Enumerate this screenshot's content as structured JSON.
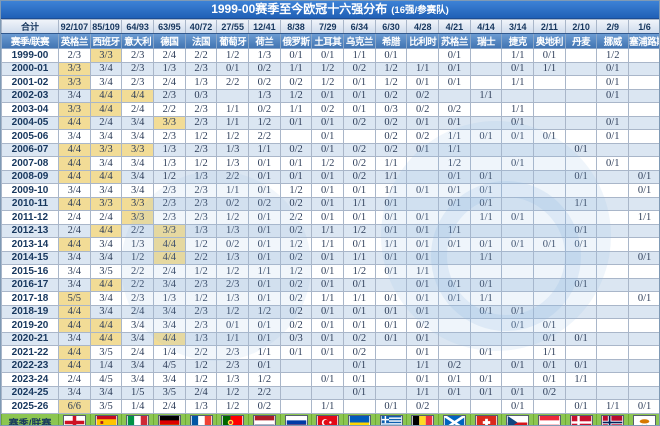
{
  "title": {
    "main": "1999-00赛季至今欧冠十六强分布",
    "sub": "(16强/参赛队)"
  },
  "colors": {
    "title_bar": "#2b6fc6",
    "country_header_row": "#4f81bd",
    "totals_row_bg": "#dce6f1",
    "row_alt_bg": "#dbe6f2",
    "highlight_cell": "#f2dc96",
    "footer_green": "#8cc651",
    "grid_line": "#a9b6c9",
    "dark_text": "#17375e"
  },
  "chart_data": {
    "type": "table",
    "title": "1999-00赛季至今欧冠十六强分布 (16强/参赛队)",
    "totals_label": "合计",
    "season_league_label": "赛季/联赛",
    "columns": [
      {
        "name": "英格兰",
        "total": "92/107",
        "flag": "england"
      },
      {
        "name": "西班牙",
        "total": "85/109",
        "flag": "spain"
      },
      {
        "name": "意大利",
        "total": "64/93",
        "flag": "italy"
      },
      {
        "name": "德国",
        "total": "63/95",
        "flag": "germany"
      },
      {
        "name": "法国",
        "total": "40/72",
        "flag": "france"
      },
      {
        "name": "葡萄牙",
        "total": "27/55",
        "flag": "portugal"
      },
      {
        "name": "荷兰",
        "total": "12/41",
        "flag": "netherlands"
      },
      {
        "name": "俄罗斯",
        "total": "8/38",
        "flag": "russia"
      },
      {
        "name": "土耳其",
        "total": "7/29",
        "flag": "turkey"
      },
      {
        "name": "乌克兰",
        "total": "6/34",
        "flag": "ukraine"
      },
      {
        "name": "希腊",
        "total": "6/30",
        "flag": "greece"
      },
      {
        "name": "比利时",
        "total": "4/28",
        "flag": "belgium"
      },
      {
        "name": "苏格兰",
        "total": "4/21",
        "flag": "scotland"
      },
      {
        "name": "瑞士",
        "total": "4/14",
        "flag": "switzerland"
      },
      {
        "name": "捷克",
        "total": "3/14",
        "flag": "czech"
      },
      {
        "name": "奥地利",
        "total": "2/11",
        "flag": "austria"
      },
      {
        "name": "丹麦",
        "total": "2/10",
        "flag": "denmark"
      },
      {
        "name": "挪威",
        "total": "2/9",
        "flag": "norway"
      },
      {
        "name": "塞浦路斯",
        "total": "1/6",
        "flag": "cyprus"
      }
    ],
    "rows": [
      {
        "season": "1999-00",
        "values": [
          "2/3",
          "3/3",
          "2/3",
          "2/4",
          "2/2",
          "1/2",
          "1/3",
          "0/1",
          "0/1",
          "1/1",
          "0/1",
          "",
          "0/1",
          "",
          "1/1",
          "0/1",
          "",
          "1/2",
          ""
        ],
        "highlight": [
          1
        ]
      },
      {
        "season": "2000-01",
        "values": [
          "3/3",
          "3/4",
          "2/3",
          "1/3",
          "2/3",
          "0/1",
          "0/2",
          "1/1",
          "1/2",
          "0/2",
          "1/2",
          "1/1",
          "0/1",
          "",
          "0/1",
          "1/1",
          "",
          "0/1",
          ""
        ],
        "highlight": [
          0
        ]
      },
      {
        "season": "2001-02",
        "values": [
          "3/3",
          "3/4",
          "2/3",
          "2/4",
          "1/3",
          "2/2",
          "0/2",
          "0/2",
          "1/2",
          "0/1",
          "1/2",
          "0/1",
          "0/1",
          "",
          "1/1",
          "",
          "",
          "0/1",
          ""
        ],
        "highlight": [
          0
        ]
      },
      {
        "season": "2002-03",
        "values": [
          "3/4",
          "4/4",
          "4/4",
          "2/3",
          "0/3",
          "",
          "1/3",
          "1/2",
          "0/1",
          "0/1",
          "0/2",
          "0/2",
          "",
          "1/1",
          "",
          "",
          "",
          "0/1",
          ""
        ],
        "highlight": [
          1,
          2
        ]
      },
      {
        "season": "2003-04",
        "values": [
          "3/3",
          "4/4",
          "2/4",
          "2/2",
          "2/3",
          "1/1",
          "0/2",
          "1/1",
          "0/2",
          "0/1",
          "0/3",
          "0/2",
          "0/2",
          "",
          "1/1",
          "",
          "",
          "",
          ""
        ],
        "highlight": [
          0,
          1
        ]
      },
      {
        "season": "2004-05",
        "values": [
          "4/4",
          "2/4",
          "3/4",
          "3/3",
          "2/3",
          "1/1",
          "1/2",
          "0/1",
          "0/1",
          "0/2",
          "0/2",
          "0/1",
          "0/1",
          "",
          "0/1",
          "",
          "",
          "0/1",
          ""
        ],
        "highlight": [
          0,
          3
        ]
      },
      {
        "season": "2005-06",
        "values": [
          "3/4",
          "3/4",
          "3/4",
          "2/3",
          "1/2",
          "1/2",
          "2/2",
          "",
          "0/1",
          "",
          "0/2",
          "0/2",
          "1/1",
          "0/1",
          "0/1",
          "0/1",
          "",
          "0/1",
          ""
        ],
        "highlight": []
      },
      {
        "season": "2006-07",
        "values": [
          "4/4",
          "3/3",
          "3/3",
          "1/3",
          "2/3",
          "1/3",
          "1/1",
          "0/2",
          "0/1",
          "0/2",
          "0/2",
          "0/1",
          "1/1",
          "",
          "",
          "",
          "0/1",
          "",
          ""
        ],
        "highlight": [
          0,
          1,
          2
        ]
      },
      {
        "season": "2007-08",
        "values": [
          "4/4",
          "3/4",
          "3/4",
          "1/3",
          "1/2",
          "1/3",
          "0/1",
          "0/1",
          "1/2",
          "0/2",
          "1/1",
          "",
          "1/2",
          "",
          "0/1",
          "",
          "",
          "0/1",
          ""
        ],
        "highlight": [
          0
        ]
      },
      {
        "season": "2008-09",
        "values": [
          "4/4",
          "4/4",
          "3/4",
          "1/2",
          "1/3",
          "2/2",
          "0/1",
          "0/1",
          "0/1",
          "0/2",
          "1/1",
          "",
          "0/1",
          "0/1",
          "",
          "",
          "0/1",
          "",
          "0/1"
        ],
        "highlight": [
          0,
          1
        ]
      },
      {
        "season": "2009-10",
        "values": [
          "3/4",
          "3/4",
          "3/4",
          "2/3",
          "2/3",
          "1/1",
          "0/1",
          "1/2",
          "0/1",
          "0/1",
          "1/1",
          "0/1",
          "0/1",
          "0/1",
          "",
          "",
          "",
          "",
          "0/1"
        ],
        "highlight": []
      },
      {
        "season": "2010-11",
        "values": [
          "4/4",
          "3/3",
          "3/3",
          "2/3",
          "2/3",
          "0/2",
          "0/2",
          "0/2",
          "0/1",
          "1/1",
          "0/1",
          "",
          "0/1",
          "0/1",
          "",
          "",
          "1/1",
          "",
          ""
        ],
        "highlight": [
          0,
          1,
          2
        ]
      },
      {
        "season": "2011-12",
        "values": [
          "2/4",
          "2/4",
          "3/3",
          "2/3",
          "2/3",
          "1/2",
          "0/1",
          "2/2",
          "0/1",
          "0/1",
          "0/1",
          "0/1",
          "",
          "1/1",
          "0/1",
          "",
          "",
          "",
          "1/1"
        ],
        "highlight": [
          2
        ]
      },
      {
        "season": "2012-13",
        "values": [
          "2/4",
          "4/4",
          "2/2",
          "3/3",
          "1/3",
          "1/3",
          "0/1",
          "0/2",
          "1/1",
          "1/2",
          "0/1",
          "0/1",
          "1/1",
          "",
          "",
          "",
          "0/1",
          "",
          ""
        ],
        "highlight": [
          1,
          3
        ]
      },
      {
        "season": "2013-14",
        "values": [
          "4/4",
          "3/4",
          "1/3",
          "4/4",
          "1/2",
          "0/2",
          "0/1",
          "1/2",
          "1/1",
          "0/1",
          "1/1",
          "0/1",
          "0/1",
          "0/1",
          "0/1",
          "0/1",
          "0/1",
          "",
          ""
        ],
        "highlight": [
          0,
          3
        ]
      },
      {
        "season": "2014-15",
        "values": [
          "3/4",
          "3/4",
          "1/2",
          "4/4",
          "2/2",
          "1/3",
          "0/1",
          "0/2",
          "0/1",
          "1/1",
          "0/1",
          "0/1",
          "",
          "1/1",
          "",
          "",
          "",
          "",
          "0/1"
        ],
        "highlight": [
          3
        ]
      },
      {
        "season": "2015-16",
        "values": [
          "3/4",
          "3/5",
          "2/2",
          "2/4",
          "1/2",
          "1/2",
          "1/1",
          "1/2",
          "0/1",
          "1/2",
          "0/1",
          "1/1",
          "",
          "",
          "",
          "",
          "",
          "",
          ""
        ],
        "highlight": []
      },
      {
        "season": "2016-17",
        "values": [
          "3/4",
          "4/4",
          "2/2",
          "3/4",
          "2/3",
          "2/3",
          "0/1",
          "0/2",
          "0/1",
          "0/1",
          "",
          "0/1",
          "0/1",
          "0/1",
          "",
          "",
          "0/1",
          "",
          ""
        ],
        "highlight": [
          1
        ]
      },
      {
        "season": "2017-18",
        "values": [
          "5/5",
          "3/4",
          "2/3",
          "1/3",
          "1/2",
          "1/3",
          "0/1",
          "0/2",
          "1/1",
          "1/1",
          "0/1",
          "0/1",
          "0/1",
          "1/1",
          "",
          "",
          "",
          "",
          "0/1"
        ],
        "highlight": [
          0
        ]
      },
      {
        "season": "2018-19",
        "values": [
          "4/4",
          "3/4",
          "2/4",
          "3/4",
          "2/3",
          "1/2",
          "1/2",
          "0/2",
          "0/1",
          "0/1",
          "0/1",
          "0/1",
          "",
          "0/1",
          "0/1",
          "",
          "",
          "",
          ""
        ],
        "highlight": [
          0
        ]
      },
      {
        "season": "2019-20",
        "values": [
          "4/4",
          "4/4",
          "3/4",
          "3/4",
          "2/3",
          "0/1",
          "0/1",
          "0/2",
          "0/1",
          "0/1",
          "0/1",
          "0/2",
          "",
          "",
          "0/1",
          "0/1",
          "",
          "",
          ""
        ],
        "highlight": [
          0,
          1
        ]
      },
      {
        "season": "2020-21",
        "values": [
          "3/4",
          "4/4",
          "3/4",
          "4/4",
          "1/3",
          "1/1",
          "0/1",
          "0/3",
          "0/1",
          "0/2",
          "0/1",
          "0/1",
          "",
          "",
          "",
          "0/1",
          "0/1",
          "",
          ""
        ],
        "highlight": [
          1,
          3
        ]
      },
      {
        "season": "2021-22",
        "values": [
          "4/4",
          "3/5",
          "2/4",
          "1/4",
          "2/2",
          "2/3",
          "1/1",
          "0/1",
          "0/1",
          "0/2",
          "",
          "0/1",
          "",
          "0/1",
          "",
          "1/1",
          "",
          "",
          ""
        ],
        "highlight": [
          0
        ]
      },
      {
        "season": "2022-23",
        "values": [
          "4/4",
          "1/4",
          "3/4",
          "4/5",
          "1/2",
          "2/3",
          "0/1",
          "",
          "",
          "0/1",
          "",
          "1/1",
          "0/2",
          "",
          "0/1",
          "0/1",
          "0/1",
          "",
          ""
        ],
        "highlight": [
          0
        ]
      },
      {
        "season": "2023-24",
        "values": [
          "2/4",
          "4/5",
          "3/4",
          "3/4",
          "1/2",
          "1/3",
          "1/2",
          "",
          "0/1",
          "0/1",
          "",
          "0/1",
          "0/1",
          "0/1",
          "",
          "0/1",
          "1/1",
          "",
          ""
        ],
        "highlight": []
      },
      {
        "season": "2024-25",
        "values": [
          "3/4",
          "3/4",
          "1/5",
          "3/5",
          "2/4",
          "1/2",
          "2/2",
          "",
          "",
          "0/1",
          "",
          "1/1",
          "0/1",
          "0/1",
          "0/1",
          "0/2",
          "",
          "",
          ""
        ],
        "highlight": []
      },
      {
        "season": "2025-26",
        "values": [
          "6/6",
          "3/5",
          "1/4",
          "2/4",
          "1/3",
          "1/2",
          "0/2",
          "",
          "1/1",
          "",
          "0/1",
          "0/2",
          "",
          "",
          "0/1",
          "",
          "0/1",
          "1/1",
          "0/1"
        ],
        "highlight": [
          0
        ]
      }
    ]
  }
}
